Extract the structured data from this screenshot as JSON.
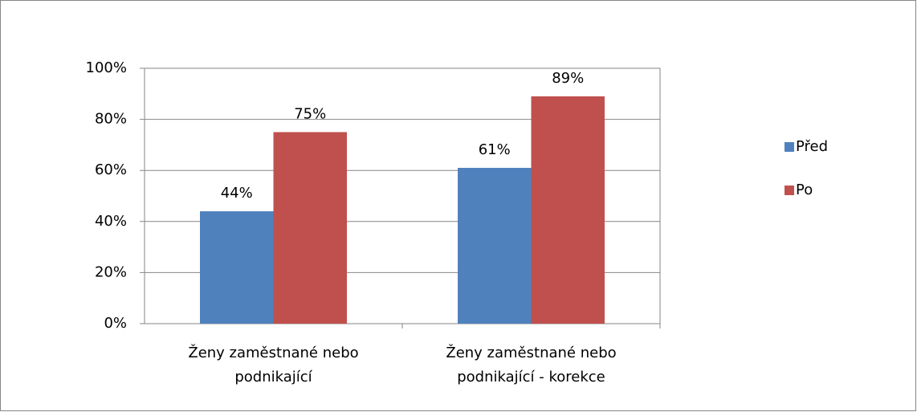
{
  "chart_data": {
    "type": "bar",
    "categories": [
      "Ženy zaměstnané nebo podnikající",
      "Ženy zaměstnané nebo podnikající - korekce"
    ],
    "series": [
      {
        "name": "Před",
        "color": "#4f81bd",
        "values": [
          44,
          61
        ],
        "value_labels": [
          "44%",
          "61%"
        ]
      },
      {
        "name": "Po",
        "color": "#c0504d",
        "values": [
          75,
          89
        ],
        "value_labels": [
          "75%",
          "89%"
        ]
      }
    ],
    "ylim": [
      0,
      100
    ],
    "yticks": [
      {
        "value": 0,
        "label": "0%"
      },
      {
        "value": 20,
        "label": "20%"
      },
      {
        "value": 40,
        "label": "40%"
      },
      {
        "value": 60,
        "label": "60%"
      },
      {
        "value": 80,
        "label": "80%"
      },
      {
        "value": 100,
        "label": "100%"
      }
    ],
    "grid": true,
    "legend": "right"
  }
}
